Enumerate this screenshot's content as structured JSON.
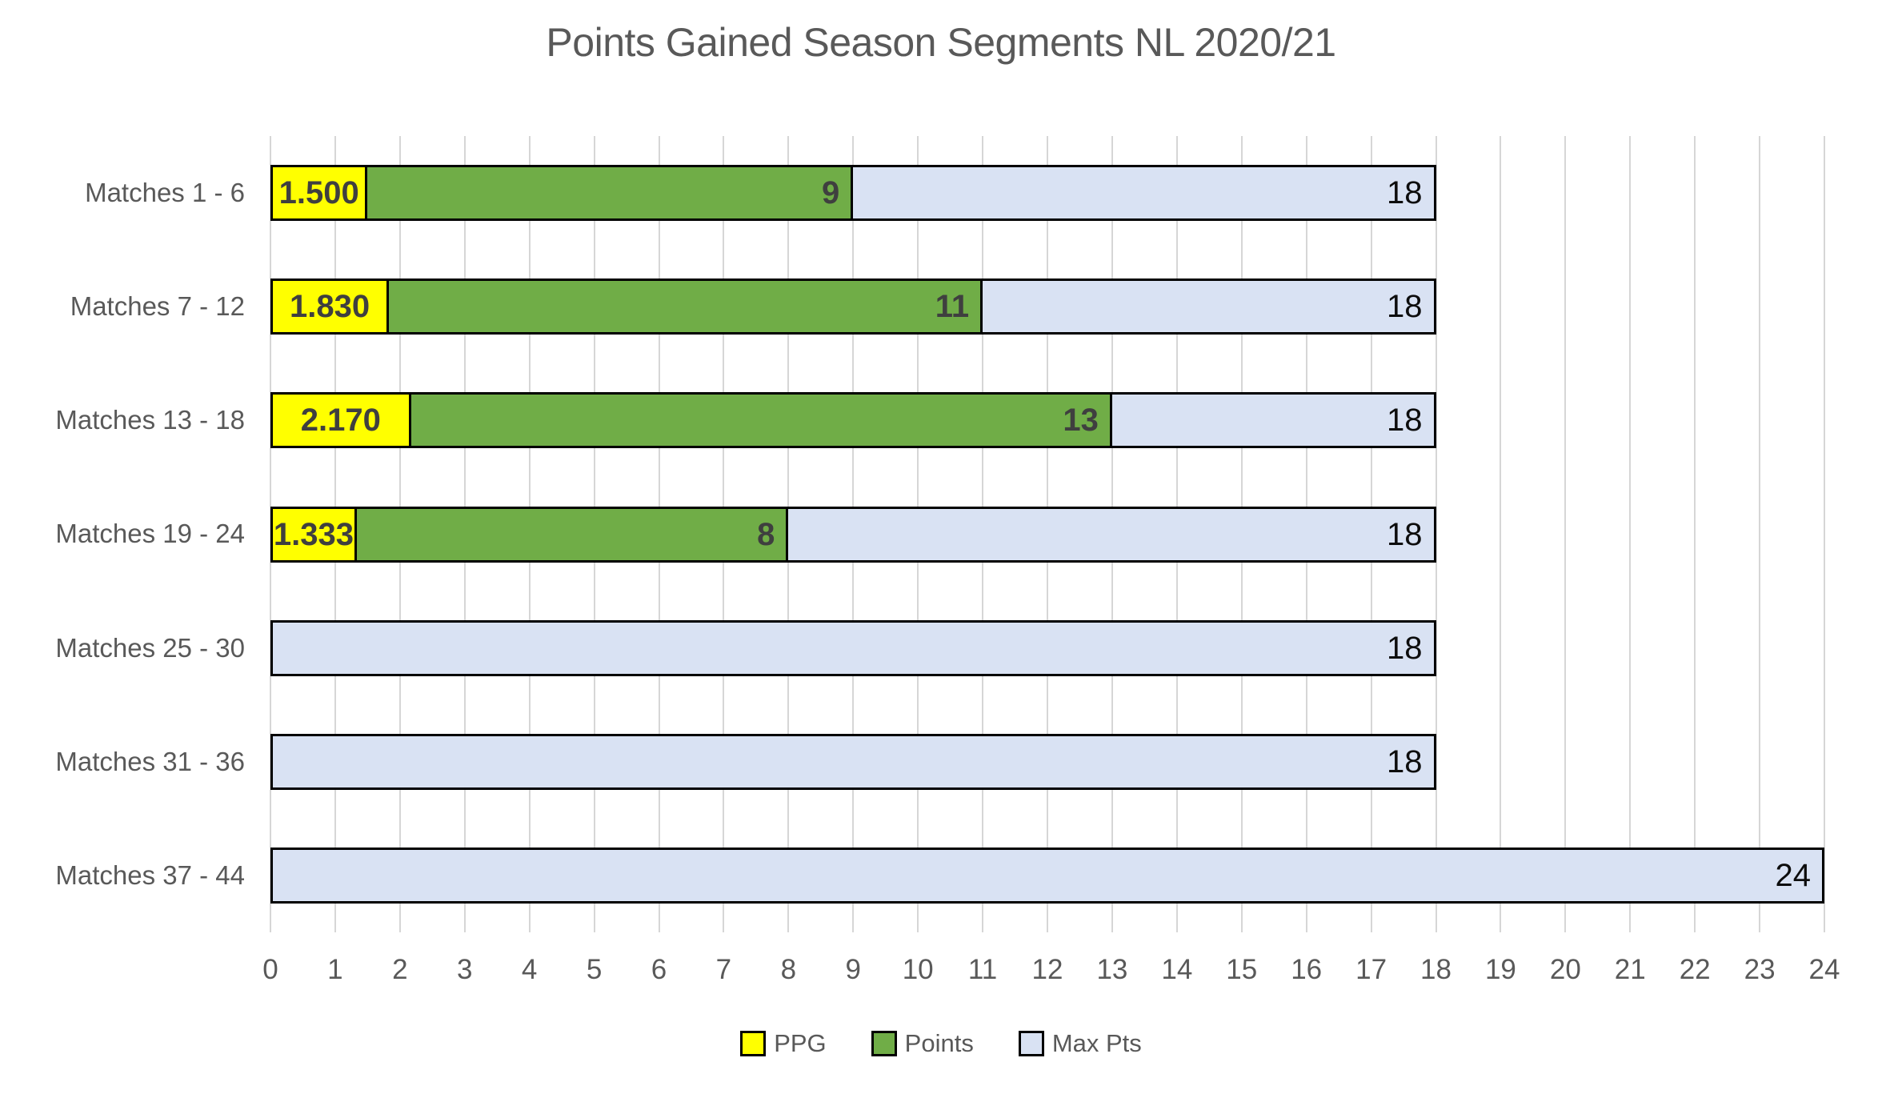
{
  "title": "Points Gained Season Segments NL 2020/21",
  "chart_data": {
    "type": "bar",
    "orientation": "horizontal",
    "title": "Points Gained Season Segments NL 2020/21",
    "categories": [
      "Matches 1 - 6",
      "Matches 7 - 12",
      "Matches 13 - 18",
      "Matches 19 - 24",
      "Matches 25 - 30",
      "Matches 31 - 36",
      "Matches 37 - 44"
    ],
    "series": [
      {
        "name": "PPG",
        "color": "#FFFF00",
        "values": [
          1.5,
          1.83,
          2.17,
          1.333,
          null,
          null,
          null
        ],
        "labels": [
          "1.500",
          "1.830",
          "2.170",
          "1.333",
          null,
          null,
          null
        ],
        "label_color": "#3f3f3f",
        "label_weight": "bold",
        "label_align": "center"
      },
      {
        "name": "Points",
        "color": "#70AD47",
        "values": [
          9,
          11,
          13,
          8,
          null,
          null,
          null
        ],
        "labels": [
          "9",
          "11",
          "13",
          "8",
          null,
          null,
          null
        ],
        "label_color": "#3f3f3f",
        "label_weight": "bold",
        "label_align": "right"
      },
      {
        "name": "Max Pts",
        "color": "#D9E2F3",
        "values": [
          18,
          18,
          18,
          18,
          18,
          18,
          24
        ],
        "labels": [
          "18",
          "18",
          "18",
          "18",
          "18",
          "18",
          "24"
        ],
        "label_color": "#0d0d0d",
        "label_weight": "normal",
        "label_align": "right"
      }
    ],
    "xlim": [
      0,
      24
    ],
    "xticks": [
      0,
      1,
      2,
      3,
      4,
      5,
      6,
      7,
      8,
      9,
      10,
      11,
      12,
      13,
      14,
      15,
      16,
      17,
      18,
      19,
      20,
      21,
      22,
      23,
      24
    ],
    "grid": true,
    "gridline_color": "#d6d6d6",
    "bar_mode": "overlap",
    "legend_position": "bottom",
    "bar_border_color": "#000000",
    "text_color": "#595959"
  },
  "legend": {
    "items": [
      {
        "label": "PPG",
        "color": "#FFFF00"
      },
      {
        "label": "Points",
        "color": "#70AD47"
      },
      {
        "label": "Max Pts",
        "color": "#D9E2F3"
      }
    ]
  }
}
